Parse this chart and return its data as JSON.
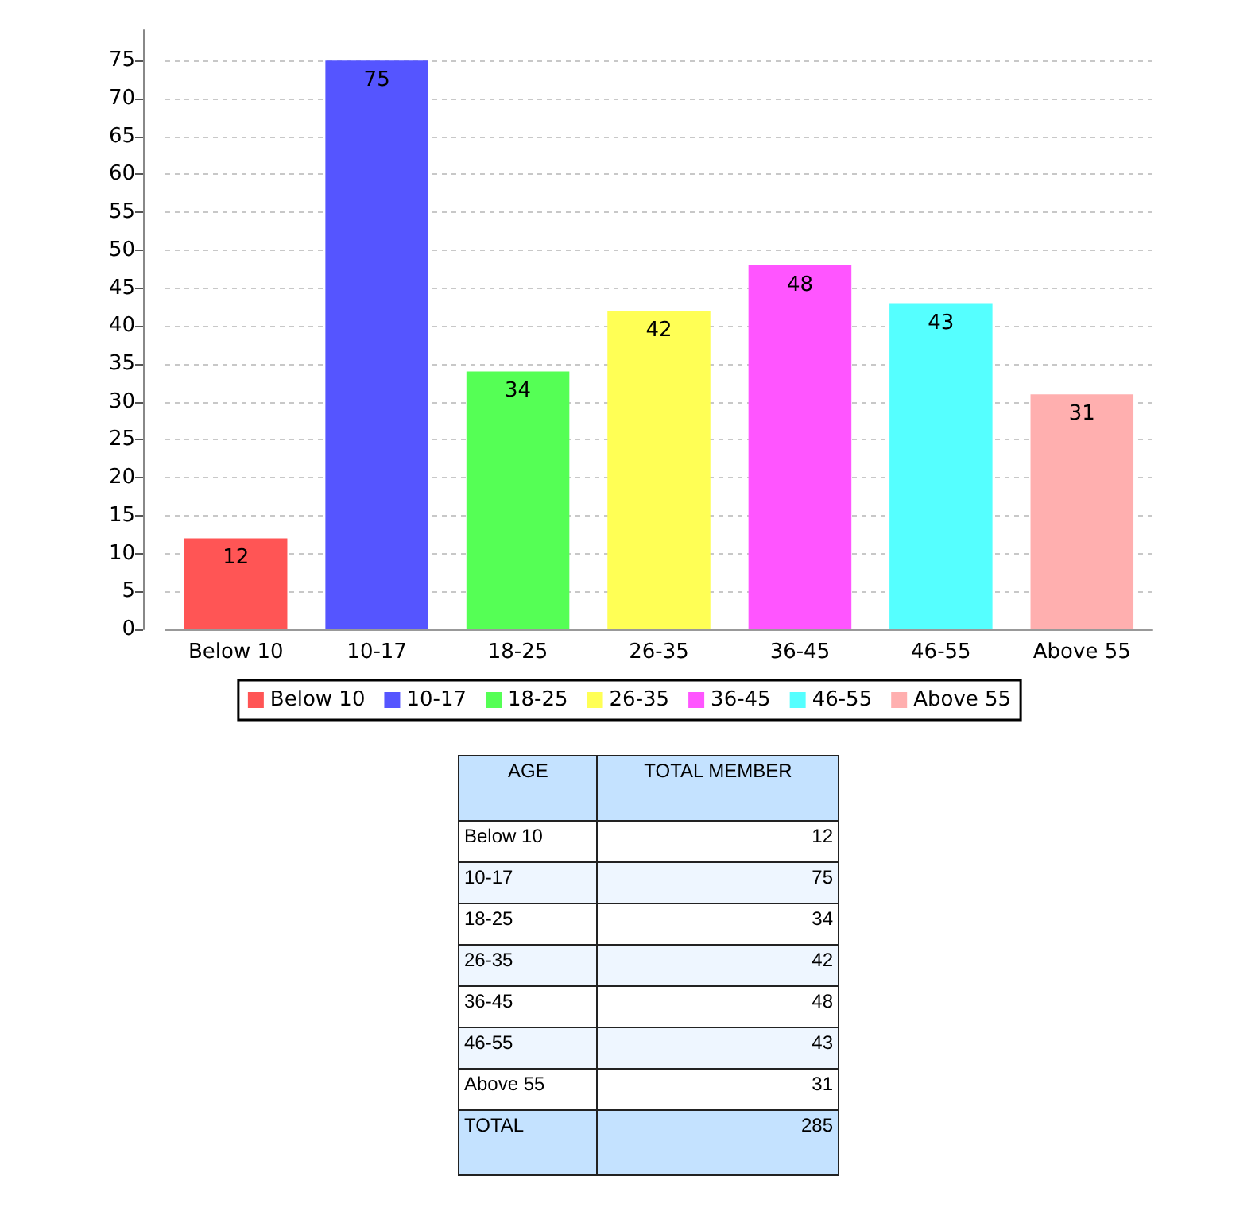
{
  "chart_data": {
    "type": "bar",
    "categories": [
      "Below 10",
      "10-17",
      "18-25",
      "26-35",
      "36-45",
      "46-55",
      "Above 55"
    ],
    "series": [
      {
        "name": "Below 10",
        "color": "#ff5555",
        "values": [
          12,
          null,
          null,
          null,
          null,
          null,
          null
        ]
      },
      {
        "name": "10-17",
        "color": "#5555ff",
        "values": [
          null,
          75,
          null,
          null,
          null,
          null,
          null
        ]
      },
      {
        "name": "18-25",
        "color": "#55ff55",
        "values": [
          null,
          null,
          34,
          null,
          null,
          null,
          null
        ]
      },
      {
        "name": "26-35",
        "color": "#ffff55",
        "values": [
          null,
          null,
          null,
          42,
          null,
          null,
          null
        ]
      },
      {
        "name": "36-45",
        "color": "#ff55ff",
        "values": [
          null,
          null,
          null,
          null,
          48,
          null,
          null
        ]
      },
      {
        "name": "46-55",
        "color": "#55ffff",
        "values": [
          null,
          null,
          null,
          null,
          null,
          43,
          null
        ]
      },
      {
        "name": "Above 55",
        "color": "#ffafaf",
        "values": [
          null,
          null,
          null,
          null,
          null,
          null,
          31
        ]
      }
    ],
    "stacked": true,
    "ylim": [
      0,
      79
    ],
    "yticks": [
      0,
      5,
      10,
      15,
      20,
      25,
      30,
      35,
      40,
      45,
      50,
      55,
      60,
      65,
      70,
      75
    ],
    "grid": "y",
    "legend": "bottom",
    "data_labels": true,
    "annotations": [
      "AGE",
      "TOTAL MEMBER",
      "12",
      "75",
      "34",
      "42",
      "48",
      "43",
      "31",
      "TOTAL",
      "285"
    ]
  }
}
